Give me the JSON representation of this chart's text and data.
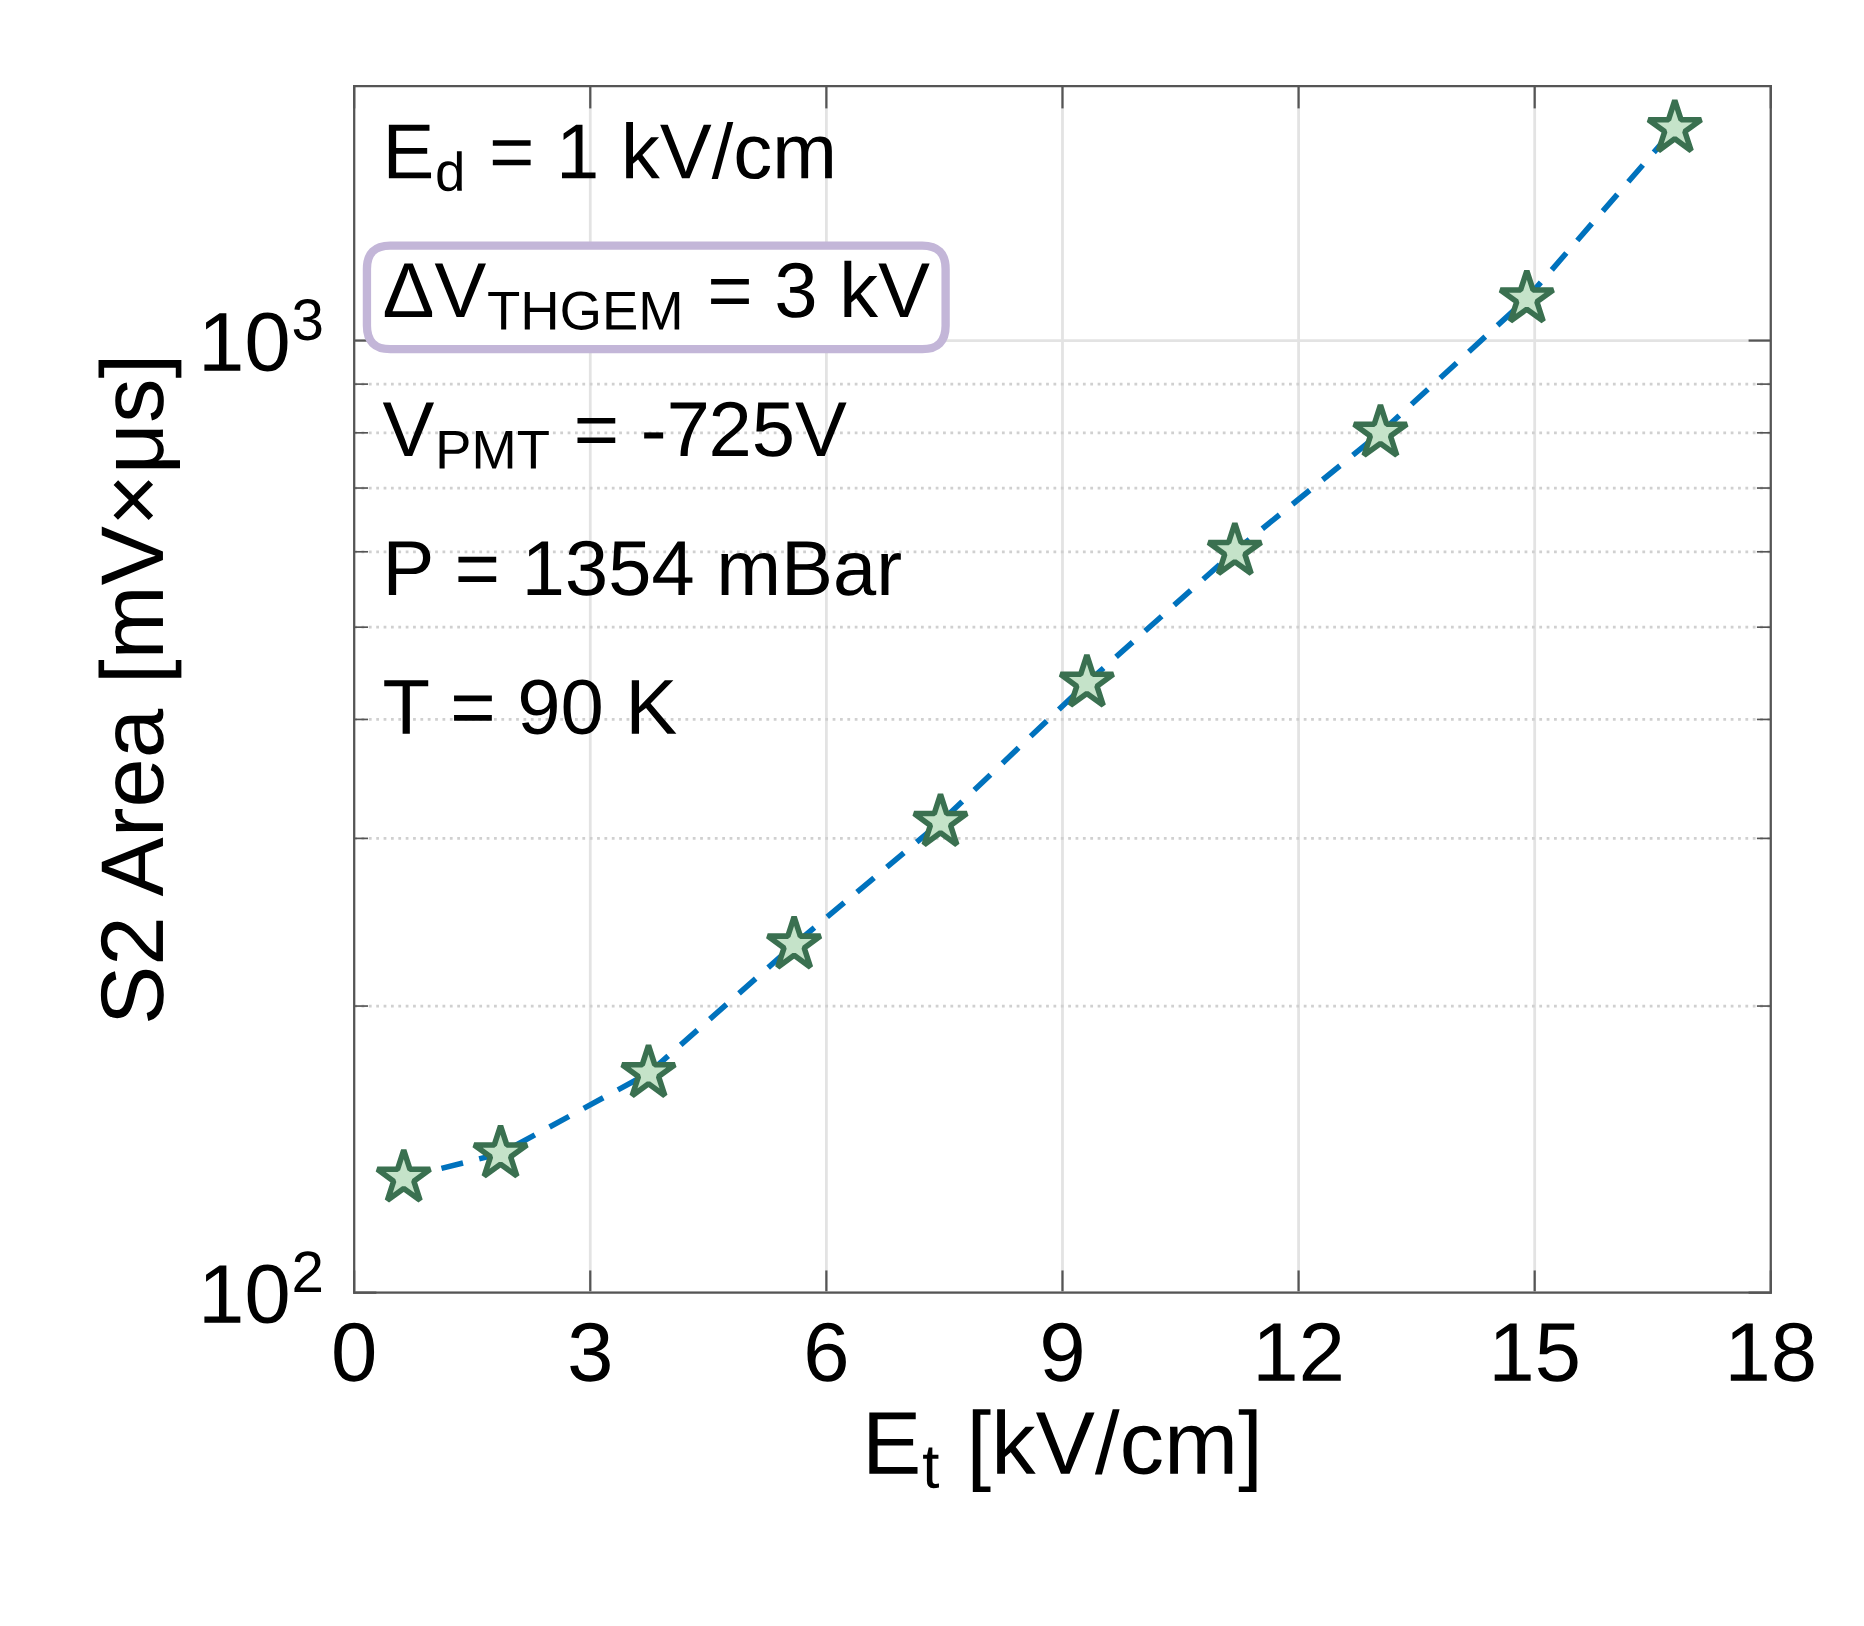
{
  "chart_data": {
    "type": "line",
    "xlabel": "E$_{t}$ [kV/cm]",
    "ylabel": "S2 Area [mV×μs]",
    "annotations": [
      "E$_{d}$ = 1 kV/cm",
      "ΔV$_{THGEM}$ = 3 kV",
      "V$_{PMT}$ = -725V",
      "P = 1354 mBar",
      "T = 90 K"
    ],
    "x": [
      0.63,
      1.86,
      3.74,
      5.59,
      7.45,
      9.31,
      11.19,
      13.04,
      14.9,
      16.78
    ],
    "series": [
      {
        "color": "#0072bd",
        "values": [
          132,
          140,
          170,
          232,
          312,
          437,
          601,
          800,
          1107,
          1671
        ]
      }
    ],
    "xlim": [
      0,
      18
    ],
    "xticks": [
      0,
      3,
      6,
      9,
      12,
      15,
      18
    ],
    "ylim": [
      100,
      1850
    ],
    "yticks": [
      {
        "value": 100,
        "label": "10$^{2}$"
      },
      {
        "value": 1000,
        "label": "10$^{3}$"
      }
    ],
    "log": "y",
    "grid": true,
    "marker": "star",
    "line_style": "dashed"
  }
}
